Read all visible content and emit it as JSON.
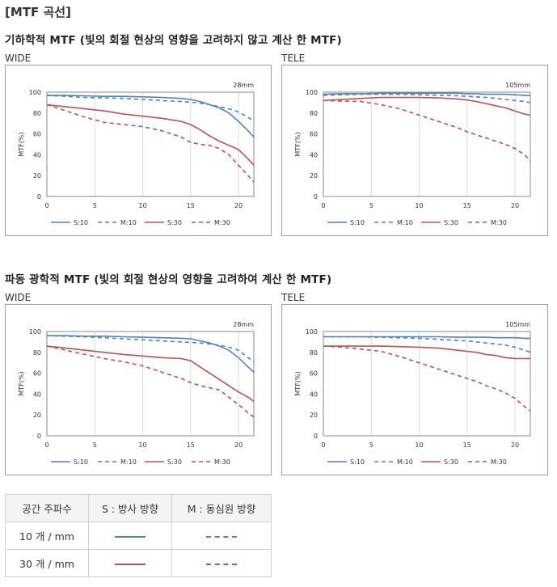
{
  "page_title": "[MTF 곡선]",
  "sections": [
    {
      "title": "기하학적 MTF (빛의 회절 현상의 영향을 고려하지 않고 계산 한 MTF)",
      "wide_label": "WIDE",
      "tele_label": "TELE"
    },
    {
      "title": "파동 광학적 MTF (빛의 회절 현상의 영향을 고려하여 계산 한 MTF)",
      "wide_label": "WIDE",
      "tele_label": "TELE"
    }
  ],
  "colors": {
    "s10": "#4f81bd",
    "m10": "#4f81bd",
    "s30": "#c0504d",
    "m30": "#c0504d"
  },
  "chart_data": [
    {
      "type": "line",
      "focal": "28mm",
      "ylabel": "MTF(%)",
      "xlim": [
        0,
        21.6
      ],
      "ylim": [
        0,
        100
      ],
      "xticks": [
        0,
        5,
        10,
        15,
        20
      ],
      "yticks": [
        0,
        20,
        40,
        60,
        80,
        100
      ],
      "x": [
        0,
        2,
        4,
        6,
        8,
        10,
        12,
        14,
        15,
        16,
        17,
        18,
        19,
        20,
        21,
        21.6
      ],
      "series": [
        {
          "name": "S:10",
          "key": "s10",
          "dash": false,
          "values": [
            97,
            97,
            96.5,
            96,
            96,
            95.5,
            95,
            94,
            93,
            91,
            88,
            85,
            80,
            72,
            63,
            57
          ]
        },
        {
          "name": "M:10",
          "key": "m10",
          "dash": true,
          "values": [
            97,
            96,
            95,
            94.5,
            94,
            93,
            92,
            91,
            90.5,
            89.5,
            88,
            86,
            84,
            81,
            76,
            72
          ]
        },
        {
          "name": "S:30",
          "key": "s30",
          "dash": false,
          "values": [
            88,
            86,
            84,
            82,
            79,
            77,
            75,
            72,
            69,
            64,
            58,
            53,
            49,
            45,
            36,
            30
          ]
        },
        {
          "name": "M:30",
          "key": "m30",
          "dash": true,
          "values": [
            88,
            82,
            76,
            71,
            69,
            67,
            63,
            57,
            52,
            50,
            49,
            46,
            40,
            30,
            20,
            14
          ]
        }
      ]
    },
    {
      "type": "line",
      "focal": "105mm",
      "ylabel": "MTF(%)",
      "xlim": [
        0,
        21.6
      ],
      "ylim": [
        0,
        100
      ],
      "xticks": [
        0,
        5,
        10,
        15,
        20
      ],
      "yticks": [
        0,
        20,
        40,
        60,
        80,
        100
      ],
      "x": [
        0,
        2,
        4,
        6,
        8,
        10,
        12,
        14,
        15,
        16,
        17,
        18,
        19,
        20,
        21,
        21.6
      ],
      "series": [
        {
          "name": "S:10",
          "key": "s10",
          "dash": false,
          "values": [
            98,
            98.5,
            98.5,
            99,
            99,
            99,
            99,
            99,
            98.5,
            98.5,
            98,
            98,
            98,
            97.5,
            97,
            97
          ]
        },
        {
          "name": "M:10",
          "key": "m10",
          "dash": true,
          "values": [
            97,
            97.5,
            98,
            98,
            98,
            97.5,
            97,
            96.5,
            96,
            95.5,
            95,
            94,
            93,
            92,
            91,
            90
          ]
        },
        {
          "name": "S:30",
          "key": "s30",
          "dash": false,
          "values": [
            92,
            93,
            94,
            95,
            95,
            95,
            94.5,
            93.5,
            92.5,
            91,
            89,
            87,
            85,
            82,
            79,
            78
          ]
        },
        {
          "name": "M:30",
          "key": "m30",
          "dash": true,
          "values": [
            92,
            91.5,
            91,
            88,
            84,
            78,
            72,
            66,
            62,
            59,
            56,
            53,
            50,
            46,
            40,
            34
          ]
        }
      ]
    },
    {
      "type": "line",
      "focal": "28mm",
      "ylabel": "MTF(%)",
      "xlim": [
        0,
        21.6
      ],
      "ylim": [
        0,
        100
      ],
      "xticks": [
        0,
        5,
        10,
        15,
        20
      ],
      "yticks": [
        0,
        20,
        40,
        60,
        80,
        100
      ],
      "x": [
        0,
        2,
        4,
        6,
        8,
        10,
        12,
        14,
        15,
        16,
        17,
        18,
        19,
        20,
        21,
        21.6
      ],
      "series": [
        {
          "name": "S:10",
          "key": "s10",
          "dash": false,
          "values": [
            96,
            96,
            95.5,
            95.5,
            95,
            94.5,
            94,
            93.5,
            93,
            91,
            89,
            86,
            82,
            75,
            66,
            61
          ]
        },
        {
          "name": "M:10",
          "key": "m10",
          "dash": true,
          "values": [
            96,
            95.5,
            95,
            94,
            93,
            92,
            91,
            90,
            89.5,
            89,
            88,
            87,
            85,
            82,
            75,
            71
          ]
        },
        {
          "name": "S:30",
          "key": "s30",
          "dash": false,
          "values": [
            86,
            84,
            82,
            80,
            78,
            76.5,
            75,
            74,
            72,
            66,
            60,
            54,
            48,
            42,
            37,
            33
          ]
        },
        {
          "name": "M:30",
          "key": "m30",
          "dash": true,
          "values": [
            86,
            82,
            78,
            74,
            71,
            67,
            61,
            55,
            51,
            48,
            46,
            44,
            37,
            30,
            22,
            18
          ]
        }
      ]
    },
    {
      "type": "line",
      "focal": "105mm",
      "ylabel": "MTF(%)",
      "xlim": [
        0,
        21.6
      ],
      "ylim": [
        0,
        100
      ],
      "xticks": [
        0,
        5,
        10,
        15,
        20
      ],
      "yticks": [
        0,
        20,
        40,
        60,
        80,
        100
      ],
      "x": [
        0,
        2,
        4,
        6,
        8,
        10,
        12,
        14,
        15,
        16,
        17,
        18,
        19,
        20,
        21,
        21.6
      ],
      "series": [
        {
          "name": "S:10",
          "key": "s10",
          "dash": false,
          "values": [
            95,
            95,
            95,
            95,
            95,
            95,
            95,
            94.5,
            94.5,
            94.5,
            94.5,
            94,
            94,
            94,
            93.5,
            93.5
          ]
        },
        {
          "name": "M:10",
          "key": "m10",
          "dash": true,
          "values": [
            95,
            95,
            95,
            94.5,
            94,
            93.5,
            92.5,
            91.5,
            91,
            90,
            89,
            88,
            87,
            85,
            82,
            80
          ]
        },
        {
          "name": "S:30",
          "key": "s30",
          "dash": false,
          "values": [
            86,
            86,
            86,
            86,
            85.5,
            85,
            84,
            82,
            81,
            80,
            78,
            77,
            75,
            74,
            74,
            74
          ]
        },
        {
          "name": "M:30",
          "key": "m30",
          "dash": true,
          "values": [
            86,
            85,
            83,
            81,
            76,
            70,
            64,
            58,
            55,
            52,
            48,
            45,
            41,
            36,
            28,
            24
          ]
        }
      ]
    }
  ],
  "legend_table": {
    "headers": [
      "공간 주파수",
      "S : 방사 방향",
      "M : 동심원 방향"
    ],
    "rows": [
      {
        "label": "10 개 / mm",
        "s_color": "#4f81bd",
        "m_color": "#4f81bd"
      },
      {
        "label": "30 개 / mm",
        "s_color": "#c0504d",
        "m_color": "#c0504d"
      }
    ]
  }
}
